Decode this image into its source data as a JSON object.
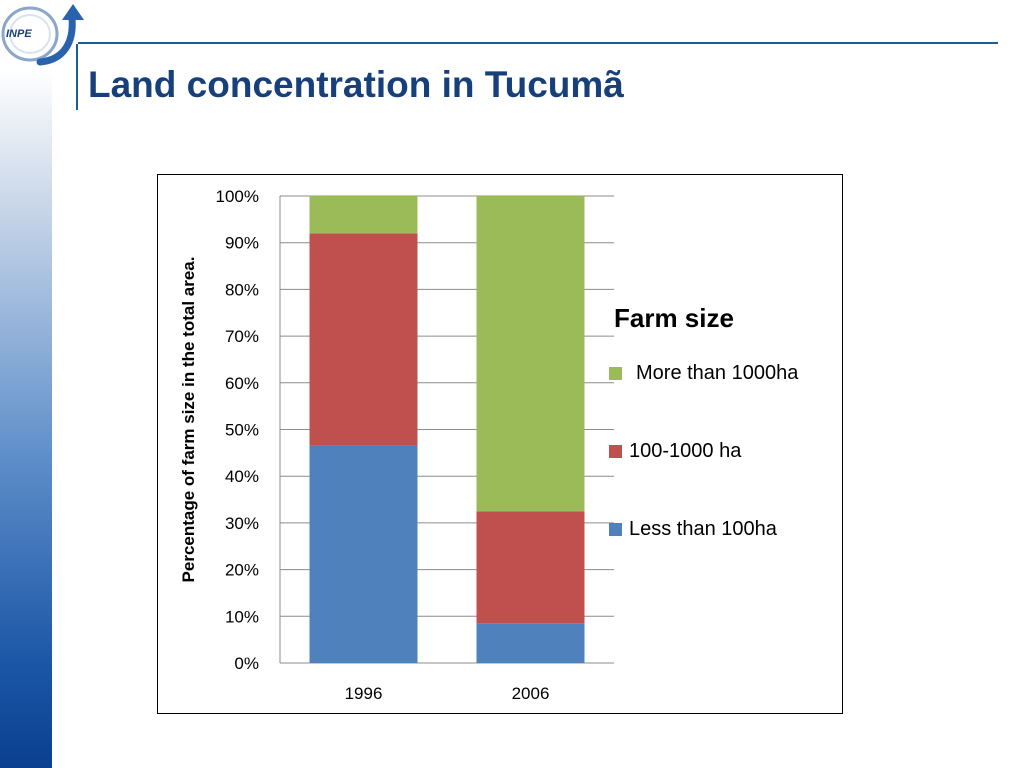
{
  "slide": {
    "title": "Land concentration in Tucumã",
    "logo_text": "INPE"
  },
  "colors": {
    "title": "#17407a",
    "header_line": "#1f5d8c",
    "series_less_100": "#4f81bd",
    "series_100_1000": "#c0504d",
    "series_more_1000": "#9bbb59",
    "gridline": "#8c8c8c"
  },
  "chart_data": {
    "type": "bar",
    "stacked": true,
    "percent_stacked": true,
    "categories": [
      "1996",
      "2006"
    ],
    "series": [
      {
        "name": "Less than 100ha",
        "values": [
          46.5,
          8.5
        ],
        "color": "#4f81bd"
      },
      {
        "name": "100-1000 ha",
        "values": [
          45.5,
          24
        ],
        "color": "#c0504d"
      },
      {
        "name": "More than 1000ha",
        "values": [
          8,
          67.5
        ],
        "color": "#9bbb59"
      }
    ],
    "title": "",
    "xlabel": "",
    "ylabel": "Percentage of farm size in the total area.",
    "ylim": [
      0,
      100
    ],
    "y_ticks": [
      "0%",
      "10%",
      "20%",
      "30%",
      "40%",
      "50%",
      "60%",
      "70%",
      "80%",
      "90%",
      "100%"
    ],
    "grid": true,
    "legend_title": "Farm size",
    "legend_position": "right",
    "legend_order": [
      "More than 1000ha",
      "100-1000 ha",
      "Less than 100ha"
    ]
  }
}
